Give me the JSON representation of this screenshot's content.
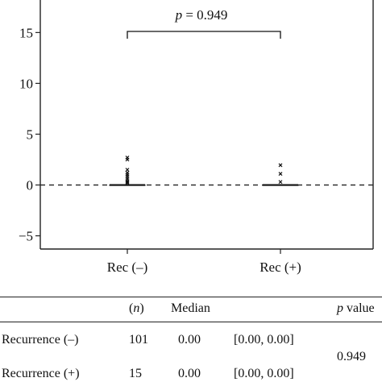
{
  "chart_data": {
    "type": "box",
    "categories": [
      "Rec (–)",
      "Rec (+)"
    ],
    "ylim": [
      -6.3,
      18.2
    ],
    "yticks": [
      -5,
      0,
      5,
      10,
      15
    ],
    "ytick_labels": [
      "−5",
      "0",
      "5",
      "10",
      "15"
    ],
    "reference_line_y": 0,
    "series": [
      {
        "category": "Rec (–)",
        "median": 0.0,
        "q1": 0.0,
        "q3": 0.0,
        "outliers": [
          2.7,
          2.5,
          1.5,
          1.2,
          1.0,
          0.8,
          0.6,
          0.4,
          0.3,
          0.2
        ]
      },
      {
        "category": "Rec (+)",
        "median": 0.0,
        "q1": 0.0,
        "q3": 0.0,
        "outliers": [
          1.95,
          1.1,
          0.3
        ]
      }
    ],
    "annotation": {
      "prefix": "p",
      "text": " = 0.949"
    }
  },
  "table": {
    "headers": {
      "n": "(n)",
      "median": "Median",
      "p": "p",
      "p_suffix": " value"
    },
    "rows": [
      {
        "label": "Recurrence (–)",
        "n": "101",
        "median": "0.00",
        "range": "[0.00, 0.00]"
      },
      {
        "label": "Recurrence (+)",
        "n": "15",
        "median": "0.00",
        "range": "[0.00, 0.00]"
      }
    ],
    "p_value": "0.949"
  }
}
